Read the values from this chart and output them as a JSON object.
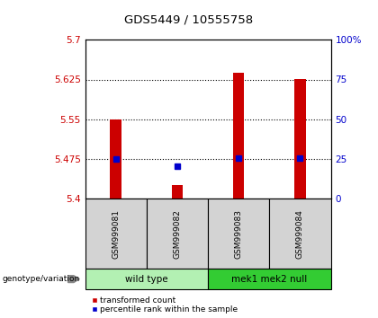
{
  "title": "GDS5449 / 10555758",
  "samples": [
    "GSM999081",
    "GSM999082",
    "GSM999083",
    "GSM999084"
  ],
  "red_bar_values": [
    5.55,
    5.425,
    5.638,
    5.625
  ],
  "blue_square_values": [
    5.475,
    5.462,
    5.476,
    5.476
  ],
  "y_min": 5.4,
  "y_max": 5.7,
  "y_ticks_left": [
    5.4,
    5.475,
    5.55,
    5.625,
    5.7
  ],
  "y_ticks_right": [
    0,
    25,
    50,
    75,
    100
  ],
  "dotted_lines": [
    5.475,
    5.55,
    5.625
  ],
  "group1_label": "wild type",
  "group2_label": "mek1 mek2 null",
  "group1_color": "#b3f0b3",
  "group2_color": "#33cc33",
  "bar_color": "#CC0000",
  "square_color": "#0000CC",
  "bg_color": "#ffffff",
  "plot_bg": "#ffffff",
  "label_color_left": "#CC0000",
  "label_color_right": "#0000CC",
  "sample_bg_color": "#d3d3d3",
  "genotype_label": "genotype/variation",
  "legend_bar_label": "transformed count",
  "legend_square_label": "percentile rank within the sample"
}
